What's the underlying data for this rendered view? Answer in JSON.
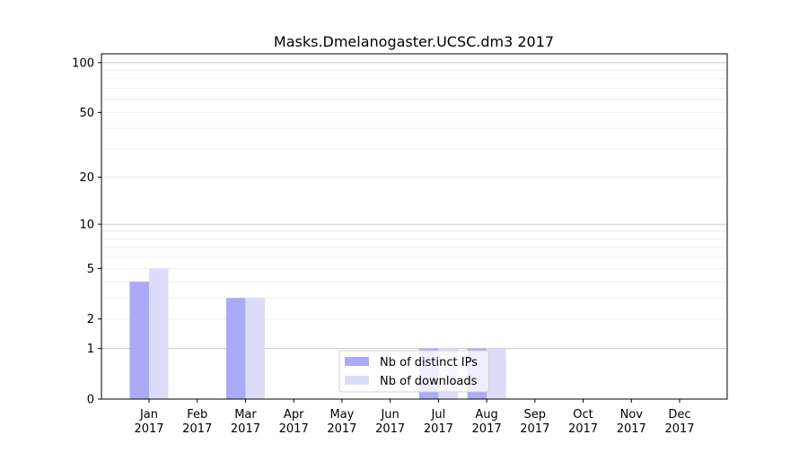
{
  "chart_data": {
    "type": "bar",
    "title": "Masks.Dmelanogaster.UCSC.dm3 2017",
    "xlabel": "",
    "ylabel": "",
    "categories": [
      "Jan\n2017",
      "Feb\n2017",
      "Mar\n2017",
      "Apr\n2017",
      "May\n2017",
      "Jun\n2017",
      "Jul\n2017",
      "Aug\n2017",
      "Sep\n2017",
      "Oct\n2017",
      "Nov\n2017",
      "Dec\n2017"
    ],
    "category_lines": [
      [
        "Jan",
        "2017"
      ],
      [
        "Feb",
        "2017"
      ],
      [
        "Mar",
        "2017"
      ],
      [
        "Apr",
        "2017"
      ],
      [
        "May",
        "2017"
      ],
      [
        "Jun",
        "2017"
      ],
      [
        "Jul",
        "2017"
      ],
      [
        "Aug",
        "2017"
      ],
      [
        "Sep",
        "2017"
      ],
      [
        "Oct",
        "2017"
      ],
      [
        "Nov",
        "2017"
      ],
      [
        "Dec",
        "2017"
      ]
    ],
    "series": [
      {
        "name": "Nb of distinct IPs",
        "color": "#aaaaf8",
        "values": [
          4,
          0,
          3,
          0,
          0,
          0,
          1,
          1,
          0,
          0,
          0,
          0
        ]
      },
      {
        "name": "Nb of downloads",
        "color": "#dcdcfa",
        "values": [
          5,
          0,
          3,
          0,
          0,
          0,
          1,
          1,
          0,
          0,
          0,
          0
        ]
      }
    ],
    "yscale": "log(1+y)",
    "ylim": [
      0,
      113
    ],
    "yticks": [
      0,
      1,
      2,
      5,
      10,
      20,
      50,
      100
    ],
    "ytick_labels": [
      "0",
      "1",
      "2",
      "5",
      "10",
      "20",
      "50",
      "100"
    ],
    "grid": true,
    "legend_position": "lower-center"
  }
}
